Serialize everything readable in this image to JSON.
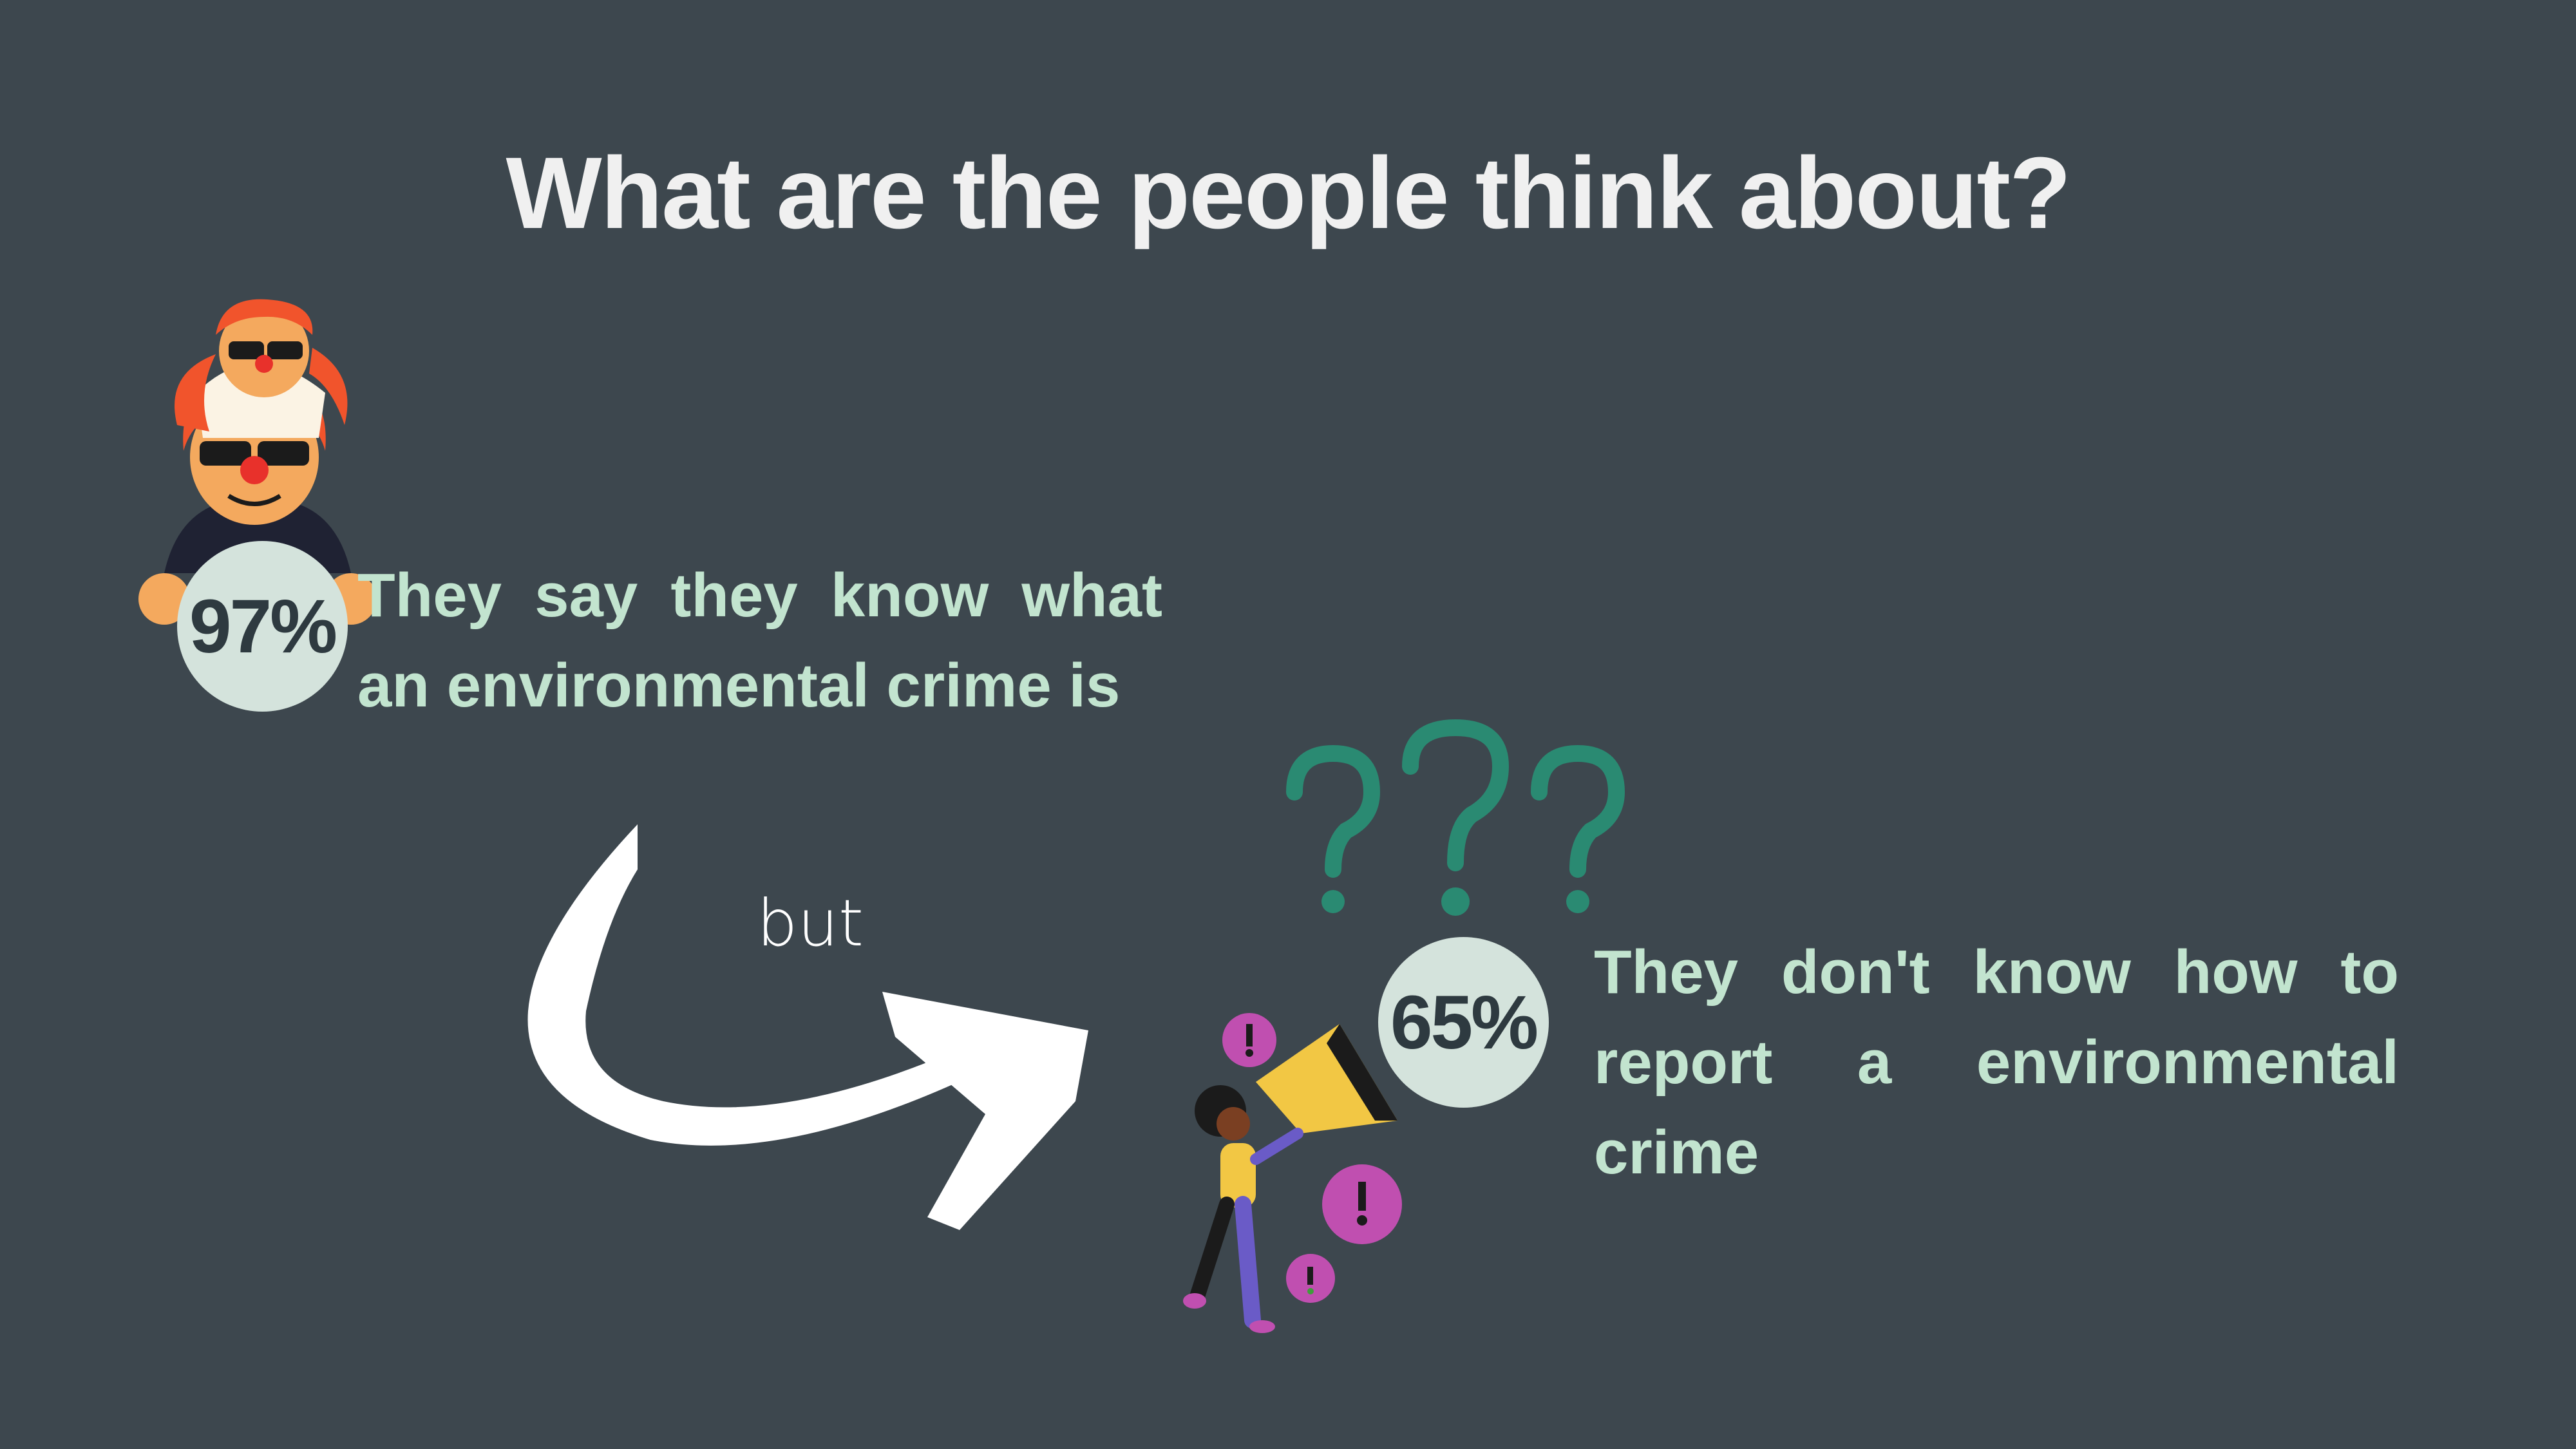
{
  "title": "What are the people think about?",
  "stats": [
    {
      "percent": "97%",
      "text": "They say they know what an environmental crime is"
    },
    {
      "percent": "65%",
      "text": "They don't know how to report a environmental crime"
    }
  ],
  "connector": "but",
  "colors": {
    "background": "#3d474e",
    "title": "#f0f0f0",
    "stat_text": "#c2e4cf",
    "badge": "#d4e3dc",
    "question_marks": "#2a8a72",
    "exclamation": "#c04fb0"
  }
}
